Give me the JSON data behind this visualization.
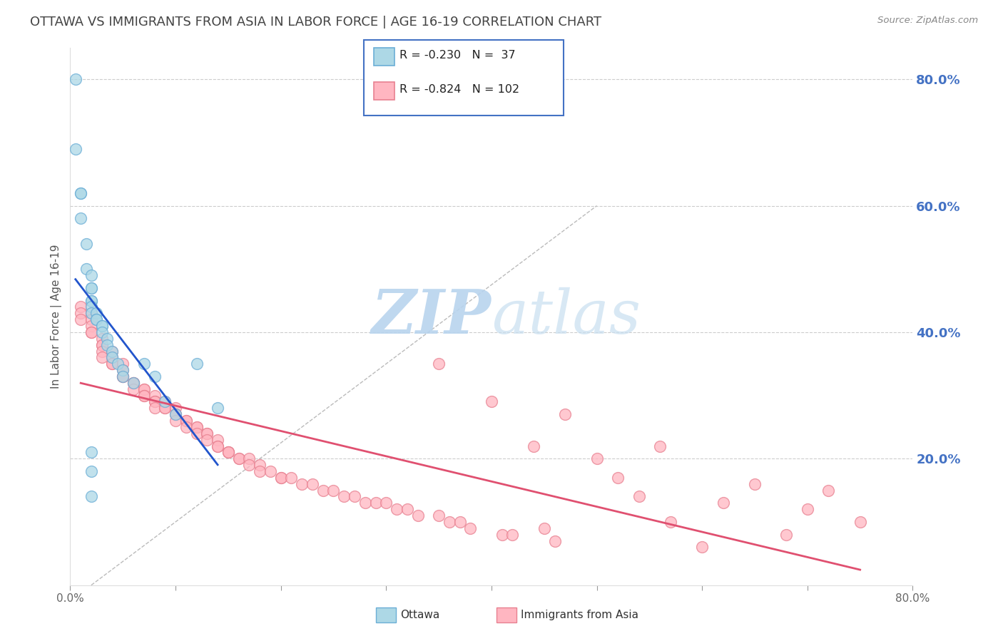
{
  "title": "OTTAWA VS IMMIGRANTS FROM ASIA IN LABOR FORCE | AGE 16-19 CORRELATION CHART",
  "source": "Source: ZipAtlas.com",
  "ylabel": "In Labor Force | Age 16-19",
  "xlim": [
    0.0,
    0.8
  ],
  "ylim": [
    0.0,
    0.85
  ],
  "ytick_labels_right": [
    "80.0%",
    "60.0%",
    "40.0%",
    "20.0%"
  ],
  "ytick_vals_right": [
    0.8,
    0.6,
    0.4,
    0.2
  ],
  "grid_color": "#cccccc",
  "background_color": "#ffffff",
  "title_color": "#444444",
  "title_fontsize": 13,
  "series1_label": "Ottawa",
  "series1_color": "#add8e6",
  "series1_edge_color": "#6baed6",
  "series1_line_color": "#2255cc",
  "series2_label": "Immigrants from Asia",
  "series2_color": "#ffb6c1",
  "series2_edge_color": "#e88090",
  "series2_line_color": "#e05070",
  "ottawa_x": [
    0.005,
    0.005,
    0.01,
    0.01,
    0.01,
    0.015,
    0.015,
    0.02,
    0.02,
    0.02,
    0.02,
    0.02,
    0.02,
    0.02,
    0.025,
    0.025,
    0.025,
    0.03,
    0.03,
    0.03,
    0.035,
    0.035,
    0.04,
    0.04,
    0.045,
    0.05,
    0.05,
    0.06,
    0.07,
    0.08,
    0.09,
    0.1,
    0.12,
    0.14,
    0.02,
    0.02,
    0.02
  ],
  "ottawa_y": [
    0.8,
    0.69,
    0.62,
    0.62,
    0.58,
    0.54,
    0.5,
    0.49,
    0.47,
    0.47,
    0.45,
    0.45,
    0.44,
    0.43,
    0.43,
    0.42,
    0.42,
    0.41,
    0.41,
    0.4,
    0.39,
    0.38,
    0.37,
    0.36,
    0.35,
    0.34,
    0.33,
    0.32,
    0.35,
    0.33,
    0.29,
    0.27,
    0.35,
    0.28,
    0.21,
    0.18,
    0.14
  ],
  "asia_x": [
    0.01,
    0.01,
    0.01,
    0.02,
    0.02,
    0.02,
    0.02,
    0.02,
    0.03,
    0.03,
    0.03,
    0.03,
    0.03,
    0.04,
    0.04,
    0.04,
    0.04,
    0.05,
    0.05,
    0.05,
    0.05,
    0.05,
    0.06,
    0.06,
    0.06,
    0.06,
    0.07,
    0.07,
    0.07,
    0.07,
    0.08,
    0.08,
    0.08,
    0.08,
    0.09,
    0.09,
    0.09,
    0.1,
    0.1,
    0.1,
    0.1,
    0.11,
    0.11,
    0.11,
    0.12,
    0.12,
    0.12,
    0.13,
    0.13,
    0.13,
    0.14,
    0.14,
    0.14,
    0.15,
    0.15,
    0.15,
    0.16,
    0.16,
    0.17,
    0.17,
    0.18,
    0.18,
    0.19,
    0.2,
    0.2,
    0.21,
    0.22,
    0.23,
    0.24,
    0.25,
    0.26,
    0.27,
    0.28,
    0.29,
    0.3,
    0.31,
    0.32,
    0.33,
    0.35,
    0.35,
    0.36,
    0.37,
    0.38,
    0.4,
    0.41,
    0.42,
    0.44,
    0.45,
    0.46,
    0.47,
    0.5,
    0.52,
    0.54,
    0.56,
    0.57,
    0.6,
    0.62,
    0.65,
    0.68,
    0.7,
    0.72,
    0.75
  ],
  "asia_y": [
    0.44,
    0.43,
    0.42,
    0.43,
    0.42,
    0.41,
    0.4,
    0.4,
    0.39,
    0.38,
    0.38,
    0.37,
    0.36,
    0.37,
    0.36,
    0.35,
    0.35,
    0.35,
    0.34,
    0.33,
    0.33,
    0.33,
    0.32,
    0.32,
    0.32,
    0.31,
    0.31,
    0.31,
    0.3,
    0.3,
    0.3,
    0.29,
    0.29,
    0.28,
    0.29,
    0.28,
    0.28,
    0.28,
    0.27,
    0.27,
    0.26,
    0.26,
    0.26,
    0.25,
    0.25,
    0.25,
    0.24,
    0.24,
    0.24,
    0.23,
    0.23,
    0.22,
    0.22,
    0.21,
    0.21,
    0.21,
    0.2,
    0.2,
    0.2,
    0.19,
    0.19,
    0.18,
    0.18,
    0.17,
    0.17,
    0.17,
    0.16,
    0.16,
    0.15,
    0.15,
    0.14,
    0.14,
    0.13,
    0.13,
    0.13,
    0.12,
    0.12,
    0.11,
    0.11,
    0.35,
    0.1,
    0.1,
    0.09,
    0.29,
    0.08,
    0.08,
    0.22,
    0.09,
    0.07,
    0.27,
    0.2,
    0.17,
    0.14,
    0.22,
    0.1,
    0.06,
    0.13,
    0.16,
    0.08,
    0.12,
    0.15,
    0.1
  ]
}
